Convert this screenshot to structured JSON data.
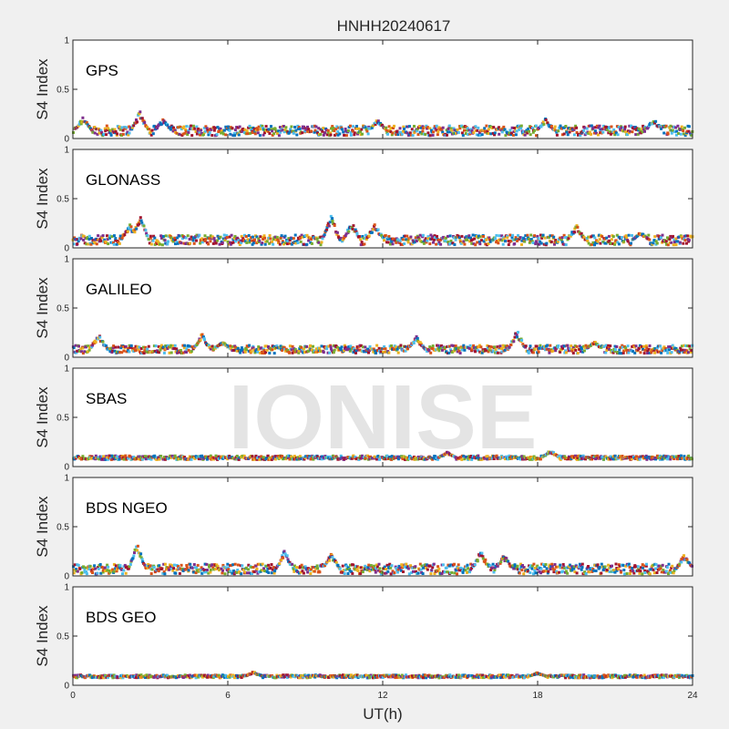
{
  "figure": {
    "title": "HNHH20240617",
    "watermark": "IONISE",
    "xlabel": "UT(h)",
    "ylabel": "S4 Index",
    "background": "#f0f0f0",
    "axes_background": "#ffffff"
  },
  "chart_data": {
    "type": "scatter",
    "title": "HNHH20240617",
    "xlabel": "UT(h)",
    "ylabel": "S4 Index",
    "xlim": [
      0,
      24
    ],
    "ylim": [
      0,
      1
    ],
    "xticks": [
      0,
      6,
      12,
      18,
      24
    ],
    "yticks": [
      0,
      0.5,
      1
    ],
    "xtick_labels": [
      "0",
      "6",
      "12",
      "18",
      "24"
    ],
    "ytick_labels": [
      "0",
      "0.5",
      "1"
    ],
    "grid": false,
    "legend": "none",
    "colors": [
      "#0072BD",
      "#D95319",
      "#EDB120",
      "#7E2F8E",
      "#77AC30",
      "#4DBEEE",
      "#A2142F"
    ],
    "panels": [
      {
        "label": "GPS",
        "baseline": 0.08,
        "spread": 0.05,
        "peaks": [
          [
            0.4,
            0.22
          ],
          [
            2.6,
            0.28
          ],
          [
            3.5,
            0.2
          ],
          [
            11.8,
            0.2
          ],
          [
            18.3,
            0.2
          ],
          [
            22.5,
            0.2
          ]
        ]
      },
      {
        "label": "GLONASS",
        "baseline": 0.08,
        "spread": 0.05,
        "peaks": [
          [
            2.6,
            0.37
          ],
          [
            2.2,
            0.25
          ],
          [
            10.0,
            0.34
          ],
          [
            10.8,
            0.27
          ],
          [
            11.7,
            0.26
          ],
          [
            19.5,
            0.24
          ],
          [
            22.0,
            0.16
          ]
        ]
      },
      {
        "label": "GALILEO",
        "baseline": 0.08,
        "spread": 0.04,
        "peaks": [
          [
            1.0,
            0.24
          ],
          [
            5.0,
            0.24
          ],
          [
            5.8,
            0.16
          ],
          [
            13.3,
            0.22
          ],
          [
            17.2,
            0.28
          ],
          [
            20.2,
            0.16
          ]
        ]
      },
      {
        "label": "SBAS",
        "baseline": 0.09,
        "spread": 0.02,
        "peaks": [
          [
            14.5,
            0.15
          ],
          [
            18.5,
            0.17
          ]
        ]
      },
      {
        "label": "BDS NGEO",
        "baseline": 0.07,
        "spread": 0.05,
        "peaks": [
          [
            2.5,
            0.35
          ],
          [
            8.2,
            0.26
          ],
          [
            10.0,
            0.24
          ],
          [
            15.8,
            0.27
          ],
          [
            16.7,
            0.22
          ],
          [
            23.7,
            0.23
          ]
        ]
      },
      {
        "label": "BDS GEO",
        "baseline": 0.09,
        "spread": 0.015,
        "peaks": [
          [
            7.0,
            0.14
          ],
          [
            18.0,
            0.13
          ]
        ]
      }
    ]
  }
}
